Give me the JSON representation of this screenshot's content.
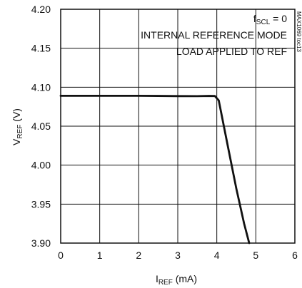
{
  "chart_data": {
    "type": "line",
    "title": "",
    "xlabel": {
      "main": "I",
      "sub": "REF",
      "unit": " (mA)"
    },
    "ylabel": {
      "main": "V",
      "sub": "REF",
      "unit": " (V)"
    },
    "xlim": [
      0,
      6
    ],
    "ylim": [
      3.9,
      4.2
    ],
    "x_ticks": [
      0,
      1,
      2,
      3,
      4,
      5,
      6
    ],
    "x_tick_labels": [
      "0",
      "1",
      "2",
      "3",
      "4",
      "5",
      "6"
    ],
    "y_ticks": [
      3.9,
      3.95,
      4.0,
      4.05,
      4.1,
      4.15,
      4.2
    ],
    "y_tick_labels": [
      "3.90",
      "3.95",
      "4.00",
      "4.05",
      "4.10",
      "4.15",
      "4.20"
    ],
    "grid": true,
    "series": [
      {
        "x": [
          0,
          0.5,
          1,
          1.5,
          2,
          2.5,
          3,
          3.5,
          3.8,
          3.95,
          4.05,
          4.3,
          4.5,
          4.7,
          4.83
        ],
        "y": [
          4.089,
          4.089,
          4.089,
          4.089,
          4.089,
          4.0888,
          4.0886,
          4.0885,
          4.0888,
          4.0887,
          4.083,
          4.02,
          3.97,
          3.925,
          3.9
        ],
        "color": "#111111"
      }
    ],
    "annotations": [
      {
        "main": "f",
        "sub": "SCL",
        "rest": " = 0"
      },
      {
        "text": "INTERNAL REFERENCE MODE"
      },
      {
        "text": "LOAD APPLIED TO REF"
      }
    ],
    "side_id": "MAX1069 toc13"
  }
}
